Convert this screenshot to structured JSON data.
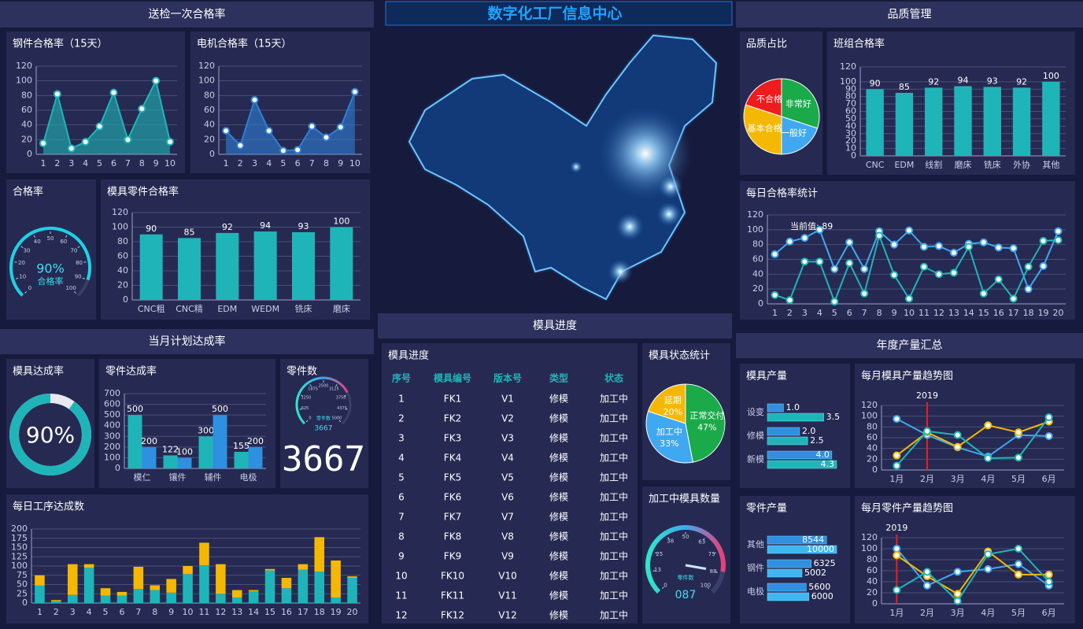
{
  "title": "数字化工厂信息中心",
  "sections": [
    "送检一次合格率",
    "当月计划达成率",
    "模具进度",
    "品质管理",
    "年度产量汇总"
  ],
  "chart_data": [
    {
      "type": "area",
      "title": "钢件合格率（15天）",
      "categories": [
        "1",
        "2",
        "3",
        "4",
        "5",
        "6",
        "7",
        "8",
        "9",
        "10"
      ],
      "values": [
        15,
        82,
        8,
        17,
        38,
        84,
        20,
        62,
        100,
        17
      ],
      "color": "#1fb5b8",
      "ylim": [
        0,
        120
      ],
      "yticks": [
        0,
        20,
        40,
        60,
        80,
        100,
        120
      ],
      "grid": true,
      "markers": true
    },
    {
      "type": "area",
      "title": "电机合格率（15天）",
      "categories": [
        "1",
        "2",
        "3",
        "4",
        "5",
        "6",
        "7",
        "8",
        "9",
        "10"
      ],
      "values": [
        32,
        12,
        74,
        32,
        5,
        6,
        38,
        23,
        37,
        85
      ],
      "color": "#2f7fd6",
      "ylim": [
        0,
        120
      ],
      "yticks": [
        0,
        20,
        40,
        60,
        80,
        100,
        120
      ],
      "grid": true,
      "markers": true
    },
    {
      "type": "gauge",
      "title": "合格率",
      "value": 90,
      "value_label": "90%",
      "caption": "合格率",
      "lim": [
        0,
        100
      ],
      "ticks": [
        0,
        10,
        20,
        30,
        40,
        50,
        60,
        70,
        80,
        90,
        100
      ],
      "colors": [
        "#19d4e6",
        "#19d4e6"
      ]
    },
    {
      "type": "bar",
      "title": "模具零件合格率",
      "categories": [
        "CNC粗",
        "CNC精",
        "EDM",
        "WEDM",
        "铣床",
        "磨床"
      ],
      "values": [
        90,
        85,
        92,
        94,
        93,
        100
      ],
      "color": "#1fb5b8",
      "ylim": [
        0,
        120
      ],
      "yticks": [
        0,
        20,
        40,
        60,
        80,
        100,
        120
      ],
      "grid": true,
      "data_labels": true
    },
    {
      "type": "donut",
      "title": "模具达成率",
      "value": 90,
      "value_label": "90%",
      "lim": [
        0,
        100
      ],
      "color": "#1fb5b8"
    },
    {
      "type": "bar",
      "title": "零件达成率",
      "categories": [
        "模仁",
        "镶件",
        "辅件",
        "电极"
      ],
      "series": [
        {
          "color": "#1fb5b8",
          "values": [
            500,
            122,
            300,
            155
          ]
        },
        {
          "color": "#2f8fe0",
          "values": [
            200,
            100,
            500,
            200
          ]
        }
      ],
      "ylim": [
        0,
        700
      ],
      "yticks": [
        0,
        100,
        200,
        300,
        400,
        500,
        600,
        700
      ],
      "grid": true,
      "data_labels": true
    },
    {
      "type": "gauge",
      "title": "零件数",
      "value": 3667,
      "caption": "零件数",
      "lim": [
        0,
        5000
      ],
      "ticks": [
        0,
        625,
        1250,
        1875,
        2500,
        3125,
        3750,
        4375,
        5000
      ],
      "colors": [
        "#2ee6c8",
        "#3fa8f0",
        "#e8407a"
      ]
    },
    {
      "type": "bar",
      "title": "每日工序达成数",
      "stacked": true,
      "categories": [
        "1",
        "2",
        "3",
        "4",
        "5",
        "6",
        "7",
        "8",
        "9",
        "10",
        "11",
        "12",
        "13",
        "14",
        "15",
        "16",
        "17",
        "18",
        "19",
        "20"
      ],
      "series": [
        {
          "color": "#1fb5b8",
          "values": [
            47,
            5,
            22,
            95,
            20,
            20,
            38,
            35,
            28,
            78,
            102,
            25,
            15,
            32,
            88,
            40,
            90,
            85,
            15,
            68
          ]
        },
        {
          "color": "#f5b800",
          "values": [
            28,
            3,
            83,
            10,
            20,
            10,
            60,
            13,
            37,
            22,
            61,
            80,
            20,
            3,
            4,
            28,
            15,
            93,
            100,
            4
          ]
        }
      ],
      "ylim": [
        0,
        200
      ],
      "yticks": [
        0,
        25,
        50,
        75,
        100,
        125,
        150,
        175,
        200
      ],
      "grid": true
    },
    {
      "type": "pie",
      "title": "模具状态统计",
      "categories": [
        "延期",
        "加工中",
        "正常交付"
      ],
      "values": [
        20,
        33,
        47
      ],
      "value_labels": [
        "20%",
        "33%",
        "47%"
      ],
      "colors": [
        "#f5b800",
        "#3fa8f0",
        "#1aaa4a"
      ]
    },
    {
      "type": "gauge",
      "title": "加工中模具数量",
      "value": 87,
      "value_label": "087",
      "caption": "零件数",
      "lim": [
        0,
        100
      ],
      "ticks": [
        0,
        13,
        25,
        38,
        50,
        63,
        75,
        88,
        100
      ],
      "colors": [
        "#2ee6c8",
        "#3fa8f0",
        "#e8407a"
      ]
    },
    {
      "type": "pie",
      "title": "品质占比",
      "categories": [
        "不合格",
        "基本合格",
        "一般好",
        "非常好"
      ],
      "values": [
        20,
        30,
        20,
        30
      ],
      "colors": [
        "#ee1c1c",
        "#f5b800",
        "#3fa8f0",
        "#1aaa4a"
      ]
    },
    {
      "type": "bar",
      "title": "班组合格率",
      "categories": [
        "CNC",
        "EDM",
        "线割",
        "磨床",
        "铣床",
        "外协",
        "其他"
      ],
      "values": [
        90,
        85,
        92,
        94,
        93,
        92,
        100
      ],
      "color": "#1fb5b8",
      "ylim": [
        0,
        120
      ],
      "yticks": [
        0,
        10,
        20,
        30,
        40,
        50,
        60,
        70,
        80,
        90,
        100,
        120
      ],
      "grid": true,
      "data_labels": true
    },
    {
      "type": "line",
      "title": "每日合格率统计",
      "categories": [
        "1",
        "2",
        "3",
        "4",
        "5",
        "6",
        "7",
        "8",
        "9",
        "10",
        "11",
        "12",
        "13",
        "14",
        "15",
        "16",
        "17",
        "18",
        "19",
        "20"
      ],
      "series": [
        {
          "color": "#3fa8f0",
          "values": [
            67,
            84,
            89,
            100,
            47,
            83,
            47,
            98,
            80,
            99,
            77,
            78,
            69,
            81,
            83,
            76,
            75,
            20,
            51,
            98
          ]
        },
        {
          "color": "#1fb5b8",
          "values": [
            12,
            5,
            57,
            57,
            3,
            55,
            14,
            92,
            39,
            7,
            50,
            40,
            42,
            77,
            14,
            33,
            7,
            50,
            85,
            86
          ]
        }
      ],
      "ylim": [
        0,
        120
      ],
      "yticks": [
        0,
        20,
        40,
        60,
        80,
        100,
        120
      ],
      "grid": true,
      "markers": true,
      "tooltip": "当前值: 89"
    },
    {
      "type": "hbar",
      "title": "模具产量",
      "categories": [
        "设变",
        "修模",
        "新模"
      ],
      "series": [
        {
          "color": "#2f8fe0",
          "values": [
            1,
            2,
            4
          ],
          "value_labels": [
            "1.0",
            "2.0",
            "4.0"
          ]
        },
        {
          "color": "#1fb5b8",
          "values": [
            3.5,
            2.5,
            4.3
          ]
        }
      ]
    },
    {
      "type": "line",
      "title": "每月模具产量趋势图",
      "categories": [
        "1月",
        "2月",
        "3月",
        "4月",
        "5月",
        "6月"
      ],
      "series": [
        {
          "color": "#3fa8f0",
          "values": [
            95,
            65,
            42,
            25,
            65,
            63
          ]
        },
        {
          "color": "#f5b800",
          "values": [
            27,
            70,
            43,
            83,
            70,
            90
          ]
        },
        {
          "color": "#1fb5b8",
          "values": [
            8,
            72,
            65,
            22,
            23,
            98
          ]
        }
      ],
      "ylim": [
        0,
        120
      ],
      "yticks": [
        0,
        20,
        40,
        60,
        80,
        100,
        120
      ],
      "grid": true,
      "markers": true,
      "annotation": "2019",
      "annotation_at": "2月"
    },
    {
      "type": "hbar",
      "title": "零件产量",
      "categories": [
        "其他",
        "钢件",
        "电极"
      ],
      "series": [
        {
          "color": "#2f8fe0",
          "values": [
            8544,
            6325,
            5600
          ]
        },
        {
          "color": "#3fb6f0",
          "values": [
            10000,
            5002,
            6000
          ]
        }
      ]
    },
    {
      "type": "line",
      "title": "每月零件产量趋势图",
      "categories": [
        "1月",
        "2月",
        "3月",
        "4月",
        "5月",
        "6月"
      ],
      "series": [
        {
          "color": "#3fa8f0",
          "values": [
            100,
            33,
            58,
            63,
            72,
            33
          ]
        },
        {
          "color": "#f5b800",
          "values": [
            88,
            50,
            18,
            95,
            53,
            53
          ]
        },
        {
          "color": "#1fb5b8",
          "values": [
            25,
            58,
            5,
            90,
            100,
            40
          ]
        }
      ],
      "ylim": [
        0,
        120
      ],
      "yticks": [
        0,
        20,
        40,
        60,
        80,
        100,
        120
      ],
      "grid": true,
      "markers": true,
      "annotation": "2019",
      "annotation_at": "1月"
    }
  ],
  "table": {
    "title": "模具进度",
    "columns": [
      "序号",
      "模具编号",
      "版本号",
      "类型",
      "状态"
    ],
    "rows": [
      [
        "1",
        "FK1",
        "V1",
        "修模",
        "加工中"
      ],
      [
        "2",
        "FK2",
        "V2",
        "修模",
        "加工中"
      ],
      [
        "3",
        "FK3",
        "V3",
        "修模",
        "加工中"
      ],
      [
        "4",
        "FK4",
        "V4",
        "修模",
        "加工中"
      ],
      [
        "5",
        "FK5",
        "V5",
        "修模",
        "加工中"
      ],
      [
        "6",
        "FK6",
        "V6",
        "修模",
        "加工中"
      ],
      [
        "7",
        "FK7",
        "V7",
        "修模",
        "加工中"
      ],
      [
        "8",
        "FK8",
        "V8",
        "修模",
        "加工中"
      ],
      [
        "9",
        "FK9",
        "V9",
        "修模",
        "加工中"
      ],
      [
        "10",
        "FK10",
        "V10",
        "修模",
        "加工中"
      ],
      [
        "11",
        "FK11",
        "V11",
        "修模",
        "加工中"
      ],
      [
        "12",
        "FK12",
        "V12",
        "修模",
        "加工中"
      ]
    ]
  }
}
